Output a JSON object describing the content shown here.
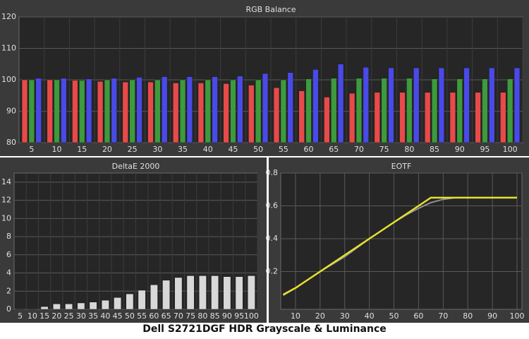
{
  "chart_data": [
    {
      "type": "bar",
      "title": "RGB Balance",
      "categories": [
        "5",
        "10",
        "15",
        "20",
        "25",
        "30",
        "35",
        "40",
        "45",
        "50",
        "55",
        "60",
        "65",
        "70",
        "75",
        "80",
        "85",
        "90",
        "95",
        "100"
      ],
      "series": [
        {
          "color": "#e84a4a",
          "values": [
            100,
            100,
            99.8,
            99.5,
            99.3,
            99.3,
            99,
            99,
            98.8,
            98.3,
            97.5,
            96.5,
            94.5,
            95.7,
            96,
            96,
            96,
            96,
            96,
            96
          ]
        },
        {
          "color": "#3d9a3d",
          "values": [
            100,
            100,
            99.8,
            100,
            100,
            100,
            100,
            100,
            100,
            100,
            100,
            100.3,
            100.5,
            100.5,
            100.5,
            100.5,
            100.3,
            100.3,
            100.3,
            100.3
          ]
        },
        {
          "color": "#4a4ae8",
          "values": [
            100.5,
            100.5,
            100.3,
            100.5,
            100.8,
            101,
            101,
            101,
            101.2,
            102,
            102.3,
            103.3,
            105,
            104,
            103.8,
            103.8,
            103.8,
            103.8,
            103.8,
            103.8
          ]
        }
      ],
      "ylim": [
        80,
        120
      ],
      "yticks": [
        80,
        90,
        100,
        110,
        120
      ],
      "grid": true
    },
    {
      "type": "bar",
      "title": "DeltaE 2000",
      "categories": [
        "5",
        "10",
        "15",
        "20",
        "25",
        "30",
        "35",
        "40",
        "45",
        "50",
        "55",
        "60",
        "65",
        "70",
        "75",
        "80",
        "85",
        "90",
        "95",
        "100"
      ],
      "series": [
        {
          "color": "#d8d8d8",
          "values": [
            0.05,
            0.05,
            0.3,
            0.6,
            0.6,
            0.7,
            0.8,
            1.0,
            1.3,
            1.7,
            2.1,
            2.7,
            3.2,
            3.5,
            3.7,
            3.7,
            3.7,
            3.6,
            3.6,
            3.7
          ]
        }
      ],
      "ylim": [
        0,
        15
      ],
      "yticks": [
        0,
        2,
        4,
        6,
        8,
        10,
        12,
        14
      ],
      "grid": true
    },
    {
      "type": "line",
      "title": "EOTF",
      "x": [
        5,
        10,
        15,
        20,
        25,
        30,
        35,
        40,
        45,
        50,
        55,
        60,
        65,
        70,
        75,
        80,
        85,
        90,
        95,
        100
      ],
      "series": [
        {
          "color": "#909090",
          "values": [
            0.055,
            0.1,
            0.15,
            0.2,
            0.245,
            0.29,
            0.345,
            0.4,
            0.45,
            0.5,
            0.545,
            0.585,
            0.62,
            0.64,
            0.65,
            0.65,
            0.65,
            0.65,
            0.65,
            0.65
          ]
        },
        {
          "color": "#e8e030",
          "values": [
            0.06,
            0.1,
            0.15,
            0.2,
            0.25,
            0.3,
            0.35,
            0.4,
            0.45,
            0.5,
            0.55,
            0.6,
            0.65,
            0.65,
            0.65,
            0.65,
            0.65,
            0.65,
            0.65,
            0.65
          ]
        }
      ],
      "xlim": [
        4,
        102
      ],
      "xticks": [
        10,
        20,
        30,
        40,
        50,
        60,
        70,
        80,
        90,
        100
      ],
      "ylim": [
        -0.03,
        0.8
      ],
      "yticks": [
        0.2,
        0.4,
        0.6,
        0.8
      ],
      "grid": true
    }
  ],
  "caption": "Dell S2721DGF HDR Grayscale & Luminance"
}
